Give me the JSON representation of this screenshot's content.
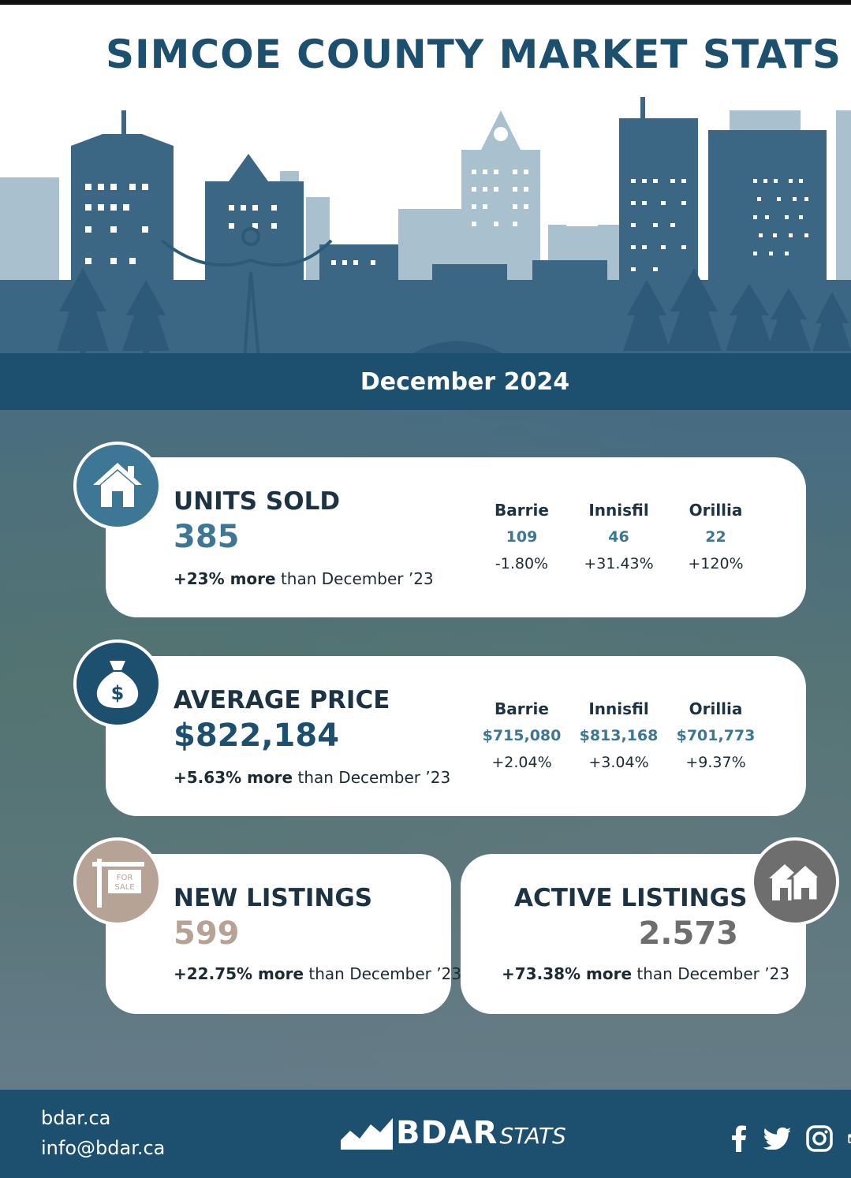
{
  "title": "SIMCOE COUNTY MARKET STATS",
  "period": "December 2024",
  "units_sold": {
    "heading": "UNITS SOLD",
    "value": "385",
    "note_bold": "+23% more",
    "note_rest": " than December ’23",
    "icon": "house-icon",
    "towns": [
      {
        "name": "Barrie",
        "value": "109",
        "change": "-1.80%"
      },
      {
        "name": "Innisfil",
        "value": "46",
        "change": "+31.43%"
      },
      {
        "name": "Orillia",
        "value": "22",
        "change": "+120%"
      }
    ]
  },
  "average_price": {
    "heading": "AVERAGE PRICE",
    "value": "$822,184",
    "note_bold": "+5.63% more",
    "note_rest": " than December ’23",
    "icon": "money-bag-icon",
    "towns": [
      {
        "name": "Barrie",
        "value": "$715,080",
        "change": "+2.04%"
      },
      {
        "name": "Innisfil",
        "value": "$813,168",
        "change": "+3.04%"
      },
      {
        "name": "Orillia",
        "value": "$701,773",
        "change": "+9.37%"
      }
    ]
  },
  "new_listings": {
    "heading": "NEW LISTINGS",
    "value": "599",
    "note_bold": "+22.75% more",
    "note_rest": " than December ’23",
    "icon": "for-sale-sign-icon",
    "sign_text": [
      "FOR",
      "SALE"
    ]
  },
  "active_listings": {
    "heading": "ACTIVE LISTINGS",
    "value": "2.573",
    "note_bold": "+73.38% more",
    "note_rest": " than December ’23",
    "icon": "houses-icon"
  },
  "footer": {
    "website": "bdar.ca",
    "email": "info@bdar.ca",
    "brand_bold": "BDAR",
    "brand_light": "STATS",
    "social_icons": [
      "facebook-icon",
      "twitter-icon",
      "instagram-icon",
      "linkedin-icon"
    ]
  },
  "colors": {
    "navy": "#1d4f6f",
    "steel_blue": "#3d7795",
    "taupe": "#b7a396",
    "grey": "#6e6e6e",
    "skyline_light": "#a9c0cf"
  }
}
